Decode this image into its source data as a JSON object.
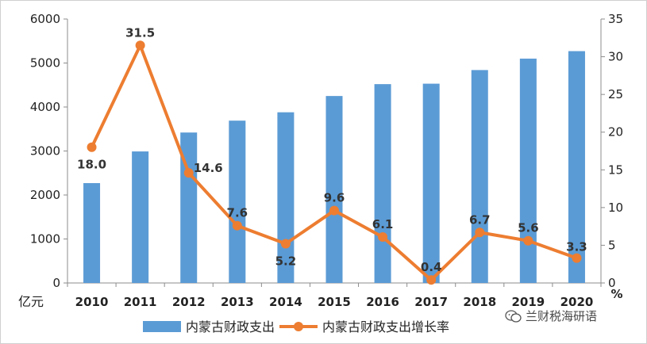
{
  "chart_data": {
    "type": "bar",
    "categories": [
      "2010",
      "2011",
      "2012",
      "2013",
      "2014",
      "2015",
      "2016",
      "2017",
      "2018",
      "2019",
      "2020"
    ],
    "series": [
      {
        "name": "内蒙古财政支出",
        "type": "bar",
        "axis": "left",
        "values": [
          2270,
          2990,
          3420,
          3690,
          3880,
          4250,
          4520,
          4530,
          4840,
          5100,
          5270
        ]
      },
      {
        "name": "内蒙古财政支出增长率",
        "type": "line",
        "axis": "right",
        "values": [
          18.0,
          31.5,
          14.6,
          7.6,
          5.2,
          9.6,
          6.1,
          0.4,
          6.7,
          5.6,
          3.3
        ],
        "labels": [
          "18.0",
          "31.5",
          "14.6",
          "7.6",
          "5.2",
          "9.6",
          "6.1",
          "0.4",
          "6.7",
          "5.6",
          "3.3"
        ]
      }
    ],
    "ylabel_left": "亿元",
    "ylabel_right": "%",
    "ylim_left": [
      0,
      6000
    ],
    "ylim_right": [
      0,
      35
    ],
    "yticks_left": [
      "0",
      "1000",
      "2000",
      "3000",
      "4000",
      "5000",
      "6000"
    ],
    "yticks_right": [
      "0",
      "5",
      "10",
      "15",
      "20",
      "25",
      "30",
      "35"
    ],
    "legend_position": "bottom",
    "grid": false,
    "colors": {
      "bar": "#5b9bd5",
      "line": "#ed7d31"
    }
  },
  "watermark": {
    "text": "兰财税海研语",
    "icon": "wechat-icon"
  }
}
